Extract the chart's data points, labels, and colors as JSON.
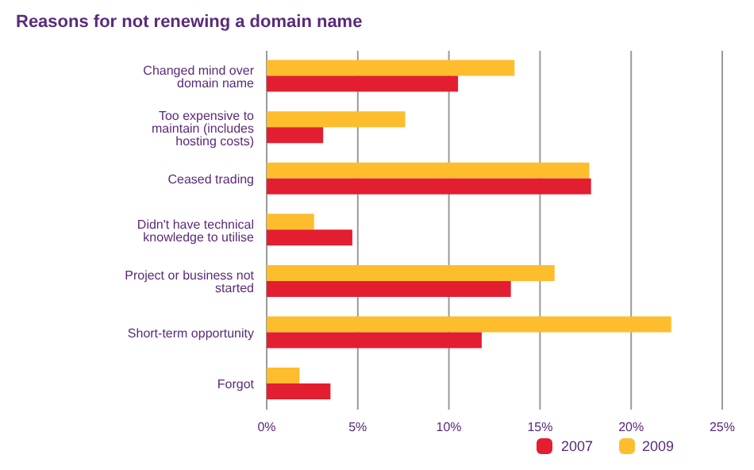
{
  "chart_data": {
    "type": "bar",
    "orientation": "horizontal",
    "title": "Reasons for not renewing a domain name",
    "categories": [
      "Changed mind over domain name",
      "Too expensive to maintain (includes hosting costs)",
      "Ceased trading",
      "Didn't have technical knowledge to utilise",
      "Project or business not started",
      "Short-term opportunity",
      "Forgot"
    ],
    "series": [
      {
        "name": "2007",
        "color": "#e31e30",
        "values": [
          10.5,
          3.1,
          17.8,
          4.7,
          13.4,
          11.8,
          3.5
        ]
      },
      {
        "name": "2009",
        "color": "#fdbd2d",
        "values": [
          13.6,
          7.6,
          17.7,
          2.6,
          15.8,
          22.2,
          1.8
        ]
      }
    ],
    "xlim": [
      0,
      25
    ],
    "xticks": [
      {
        "value": 0,
        "label": "0%"
      },
      {
        "value": 5,
        "label": "5%"
      },
      {
        "value": 10,
        "label": "10%"
      },
      {
        "value": 15,
        "label": "15%"
      },
      {
        "value": 20,
        "label": "20%"
      },
      {
        "value": 25,
        "label": "25%"
      }
    ],
    "grid": "x",
    "legend": "bottom"
  }
}
